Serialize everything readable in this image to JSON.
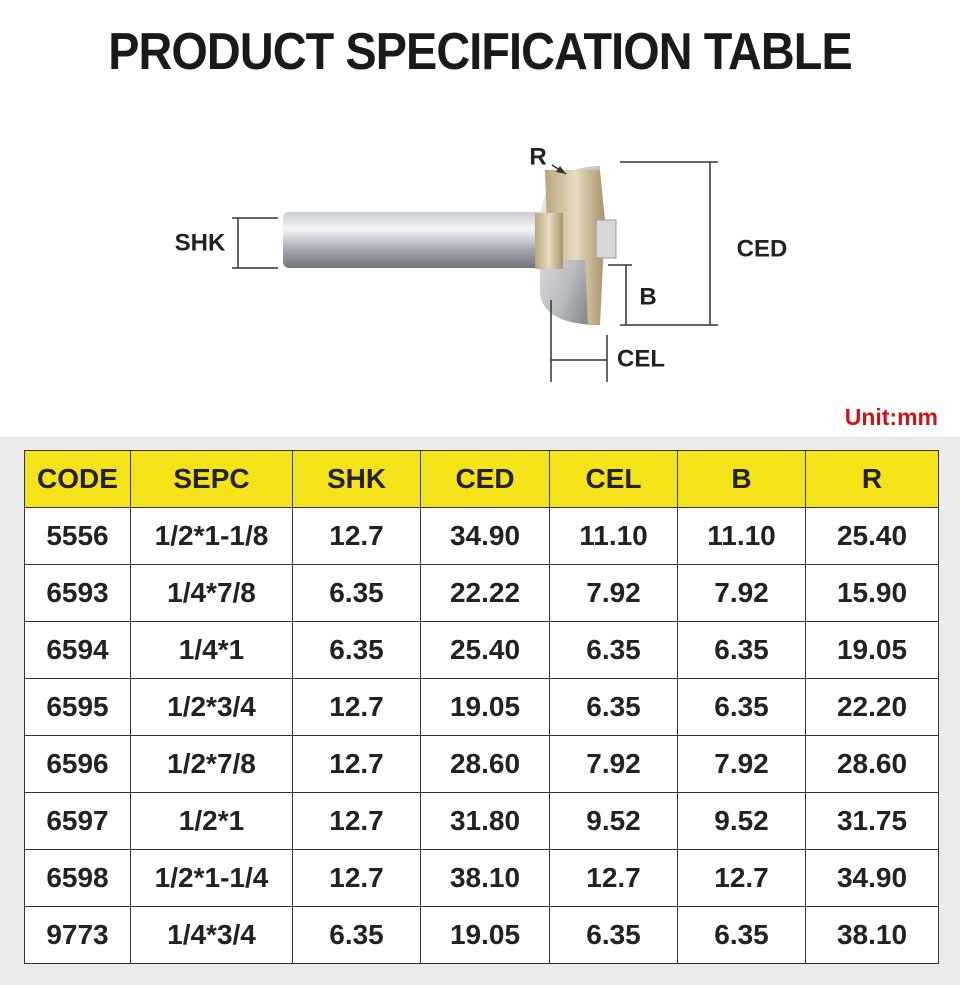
{
  "header": {
    "title": "PRODUCT SPECIFICATION TABLE"
  },
  "diagram": {
    "labels": {
      "r": "R",
      "shk": "SHK",
      "ced": "CED",
      "b": "B",
      "cel": "CEL"
    }
  },
  "unit": "Unit:mm",
  "table": {
    "columns": [
      "CODE",
      "SEPC",
      "SHK",
      "CED",
      "CEL",
      "B",
      "R"
    ],
    "rows": [
      [
        "5556",
        "1/2*1-1/8",
        "12.7",
        "34.90",
        "11.10",
        "11.10",
        "25.40"
      ],
      [
        "6593",
        "1/4*7/8",
        "6.35",
        "22.22",
        "7.92",
        "7.92",
        "15.90"
      ],
      [
        "6594",
        "1/4*1",
        "6.35",
        "25.40",
        "6.35",
        "6.35",
        "19.05"
      ],
      [
        "6595",
        "1/2*3/4",
        "12.7",
        "19.05",
        "6.35",
        "6.35",
        "22.20"
      ],
      [
        "6596",
        "1/2*7/8",
        "12.7",
        "28.60",
        "7.92",
        "7.92",
        "28.60"
      ],
      [
        "6597",
        "1/2*1",
        "12.7",
        "31.80",
        "9.52",
        "9.52",
        "31.75"
      ],
      [
        "6598",
        "1/2*1-1/4",
        "12.7",
        "38.10",
        "12.7",
        "12.7",
        "34.90"
      ],
      [
        "9773",
        "1/4*3/4",
        "6.35",
        "19.05",
        "6.35",
        "6.35",
        "38.10"
      ]
    ]
  }
}
